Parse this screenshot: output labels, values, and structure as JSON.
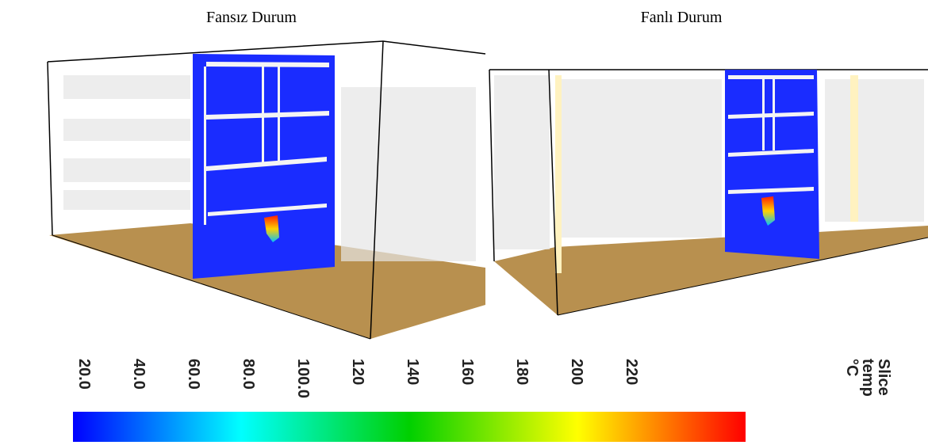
{
  "panels": [
    {
      "title": "Fansız Durum"
    },
    {
      "title": "Fanlı Durum"
    }
  ],
  "colorbar": {
    "ticks": [
      "20.0",
      "40.0",
      "60.0",
      "80.0",
      "100.0",
      "120",
      "140",
      "160",
      "180",
      "200",
      "220"
    ],
    "label": [
      "Slice",
      "temp",
      "°C"
    ]
  }
}
